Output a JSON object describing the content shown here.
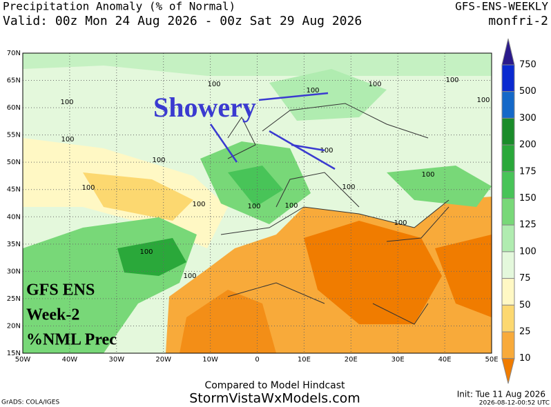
{
  "header": {
    "title": "Precipitation Anomaly (% of Normal)",
    "valid": "Valid: 00z Mon 24 Aug 2026 - 00z Sat 29 Aug 2026",
    "model": "GFS-ENS-WEEKLY",
    "period": "monfri-2"
  },
  "map": {
    "lat_labels": [
      "70N",
      "65N",
      "60N",
      "55N",
      "50N",
      "45N",
      "40N",
      "35N",
      "30N",
      "25N",
      "20N",
      "15N"
    ],
    "lon_labels": [
      "50W",
      "40W",
      "30W",
      "20W",
      "10W",
      "0",
      "10E",
      "20E",
      "30E",
      "40E",
      "50E"
    ],
    "contour_labels": [
      "100",
      "100",
      "100",
      "100",
      "100",
      "100",
      "100",
      "100",
      "100",
      "100",
      "100",
      "100",
      "100",
      "100",
      "100",
      "100",
      "100",
      "100"
    ],
    "annotation": "Showery",
    "badge": [
      "GFS ENS",
      "Week-2",
      "%NML Prec"
    ]
  },
  "colorbar": {
    "labels": [
      "750",
      "500",
      "300",
      "200",
      "175",
      "150",
      "125",
      "100",
      "75",
      "50",
      "25",
      "10"
    ],
    "colors": [
      "#2a1a8c",
      "#0a2ad0",
      "#1468c8",
      "#1a8c2a",
      "#2aa83a",
      "#48c458",
      "#78d878",
      "#b0ecb0",
      "#e4f8dc",
      "#fff8c4",
      "#fcd870",
      "#f8aa3a",
      "#f07c00"
    ]
  },
  "footer": {
    "compared": "Compared to Model Hindcast",
    "site": "StormVistaWxModels.com",
    "grads": "GrADS: COLA/IGES",
    "init": "Init: Tue 11 Aug 2026",
    "stamp": "2026-08-12-00:52 UTC"
  }
}
